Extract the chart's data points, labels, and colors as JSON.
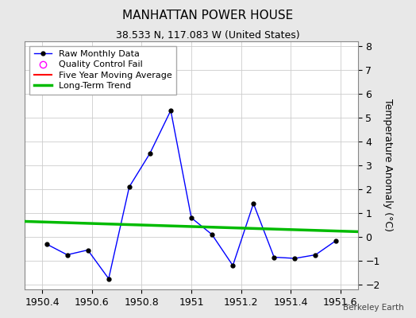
{
  "title": "MANHATTAN POWER HOUSE",
  "subtitle": "38.533 N, 117.083 W (United States)",
  "watermark": "Berkeley Earth",
  "xlabel": "",
  "ylabel": "Temperature Anomaly (°C)",
  "xlim": [
    1950.33,
    1951.67
  ],
  "ylim": [
    -2.2,
    8.2
  ],
  "xticks": [
    1950.4,
    1950.6,
    1950.8,
    1951.0,
    1951.2,
    1951.4,
    1951.6
  ],
  "xticklabels": [
    "1950.4",
    "1950.6",
    "1950.8",
    "1951",
    "1951.2",
    "1951.4",
    "1951.6"
  ],
  "yticks": [
    -2,
    -1,
    0,
    1,
    2,
    3,
    4,
    5,
    6,
    7,
    8
  ],
  "raw_x": [
    1950.417,
    1950.5,
    1950.583,
    1950.667,
    1950.75,
    1950.833,
    1950.917,
    1951.0,
    1951.083,
    1951.167,
    1951.25,
    1951.333,
    1951.417,
    1951.5,
    1951.583
  ],
  "raw_y": [
    -0.3,
    -0.75,
    -0.55,
    -1.75,
    2.1,
    3.5,
    5.3,
    0.8,
    0.1,
    -1.2,
    1.4,
    -0.85,
    -0.9,
    -0.75,
    -0.15
  ],
  "trend_x": [
    1950.33,
    1951.67
  ],
  "trend_y": [
    0.65,
    0.22
  ],
  "raw_line_color": "#0000ff",
  "raw_marker_color": "#000000",
  "trend_color": "#00bb00",
  "moving_avg_color": "#ff0000",
  "qc_fail_color": "#ff00ff",
  "bg_color": "#e8e8e8",
  "plot_bg_color": "#ffffff",
  "grid_color": "#cccccc",
  "title_fontsize": 11,
  "subtitle_fontsize": 9,
  "label_fontsize": 9,
  "tick_fontsize": 9,
  "legend_fontsize": 8
}
